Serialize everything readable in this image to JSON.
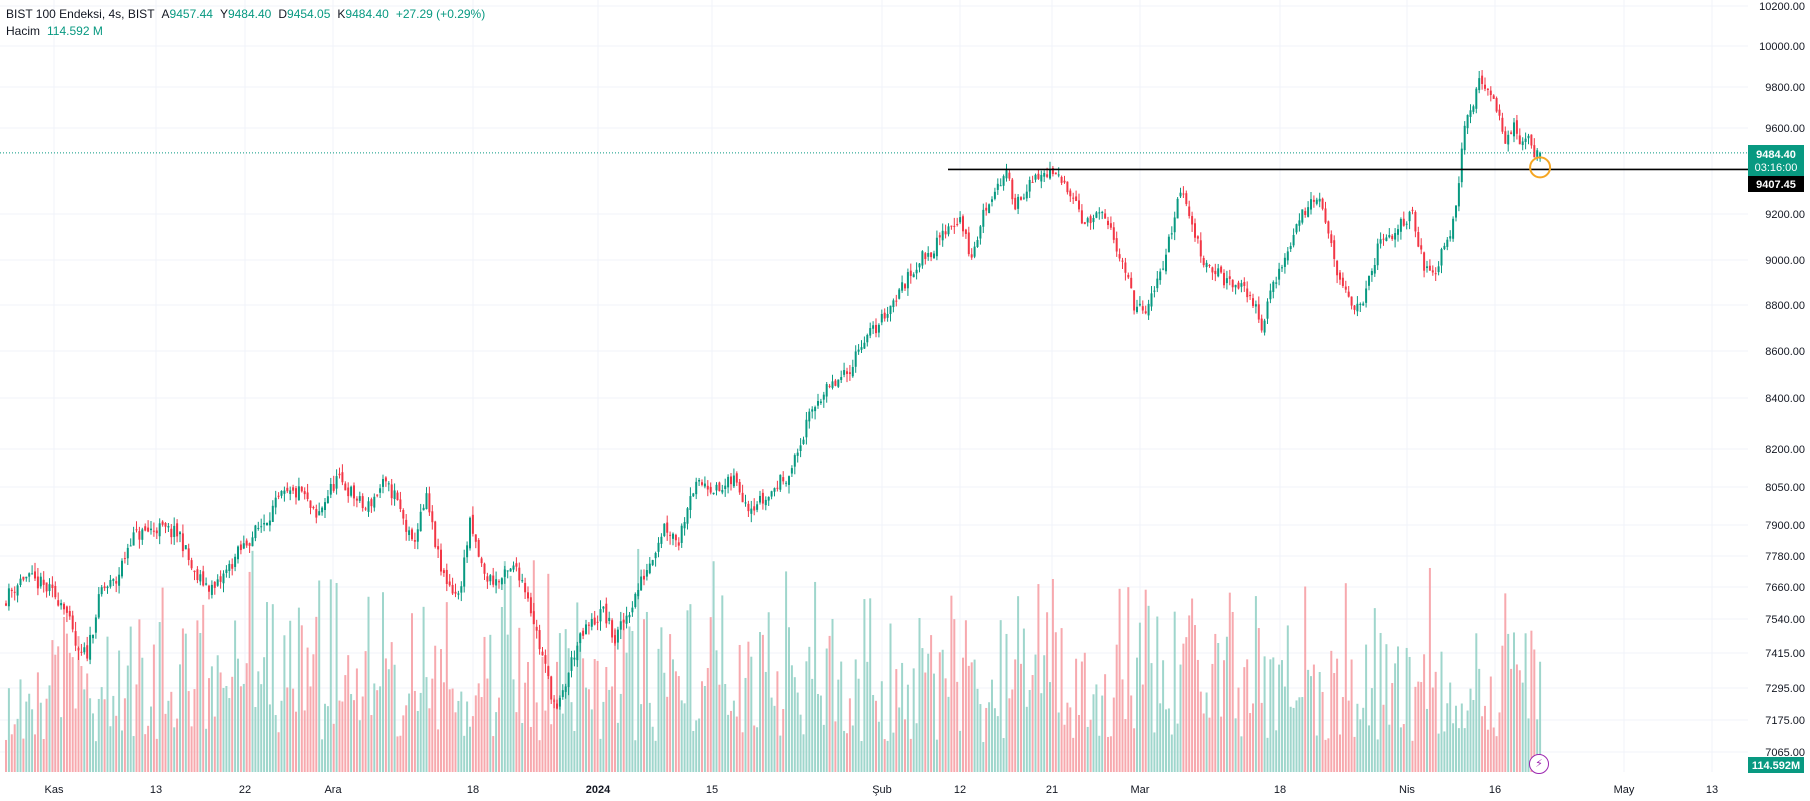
{
  "legend": {
    "symbol": "BIST 100 Endeksi, 4s, BIST",
    "open_label": "A",
    "open": "9457.44",
    "high_label": "Y",
    "high": "9484.40",
    "low_label": "D",
    "low": "9454.05",
    "close_label": "K",
    "close": "9484.40",
    "change": "+27.29 (+0.29%)",
    "volume_label": "Hacim",
    "volume_value": "114.592 M"
  },
  "price_tags": {
    "last": "9484.40",
    "countdown": "03:16:00",
    "line": "9407.45",
    "volume": "114.592M"
  },
  "colors": {
    "up": "#089981",
    "down": "#f23645",
    "vol_up": "#9fd6cc",
    "vol_down": "#f7a9ae",
    "grid": "#f0f3fa",
    "last_line": "#089981",
    "support_line": "#000000",
    "marker": "#f5a623",
    "bolt": "#9c27b0"
  },
  "icons": {
    "alert": "lightning-icon"
  },
  "chart_data": {
    "type": "candlestick",
    "title": "BIST 100 Endeksi, 4s, BIST",
    "xlabel": "",
    "ylabel": "",
    "ylim": [
      7065,
      10200
    ],
    "yticks": [
      "10200.00",
      "10000.00",
      "9800.00",
      "9600.00",
      "9200.00",
      "9000.00",
      "8800.00",
      "8600.00",
      "8400.00",
      "8200.00",
      "8050.00",
      "7900.00",
      "7780.00",
      "7660.00",
      "7540.00",
      "7415.00",
      "7295.00",
      "7175.00",
      "7065.00"
    ],
    "xticks": [
      "Kas",
      "13",
      "22",
      "Ara",
      "18",
      "2024",
      "15",
      "Şub",
      "12",
      "21",
      "Mar",
      "18",
      "Nis",
      "16",
      "May",
      "13"
    ],
    "grid": true,
    "support_level": 9407.45,
    "last_price": 9484.4,
    "close_anchors": [
      [
        0,
        7620
      ],
      [
        6,
        7700
      ],
      [
        12,
        7670
      ],
      [
        20,
        7600
      ],
      [
        25,
        7400
      ],
      [
        28,
        7420
      ],
      [
        33,
        7650
      ],
      [
        38,
        7680
      ],
      [
        43,
        7850
      ],
      [
        52,
        7890
      ],
      [
        60,
        7860
      ],
      [
        65,
        7700
      ],
      [
        72,
        7650
      ],
      [
        80,
        7790
      ],
      [
        88,
        7900
      ],
      [
        95,
        8010
      ],
      [
        102,
        8030
      ],
      [
        107,
        7920
      ],
      [
        110,
        8000
      ],
      [
        114,
        8080
      ],
      [
        118,
        8040
      ],
      [
        124,
        7960
      ],
      [
        130,
        8060
      ],
      [
        134,
        8020
      ],
      [
        140,
        7820
      ],
      [
        145,
        8000
      ],
      [
        150,
        7720
      ],
      [
        156,
        7620
      ],
      [
        160,
        7900
      ],
      [
        165,
        7700
      ],
      [
        170,
        7680
      ],
      [
        176,
        7740
      ],
      [
        180,
        7630
      ],
      [
        184,
        7440
      ],
      [
        190,
        7200
      ],
      [
        196,
        7420
      ],
      [
        200,
        7500
      ],
      [
        206,
        7570
      ],
      [
        210,
        7460
      ],
      [
        216,
        7600
      ],
      [
        222,
        7760
      ],
      [
        227,
        7900
      ],
      [
        232,
        7840
      ],
      [
        236,
        8030
      ],
      [
        241,
        8070
      ],
      [
        246,
        8030
      ],
      [
        251,
        8080
      ],
      [
        256,
        7980
      ],
      [
        262,
        8000
      ],
      [
        266,
        8060
      ],
      [
        271,
        8120
      ],
      [
        276,
        8290
      ],
      [
        280,
        8400
      ],
      [
        285,
        8450
      ],
      [
        290,
        8500
      ],
      [
        295,
        8640
      ],
      [
        300,
        8700
      ],
      [
        305,
        8800
      ],
      [
        310,
        8900
      ],
      [
        315,
        9000
      ],
      [
        320,
        9050
      ],
      [
        325,
        9150
      ],
      [
        329,
        9180
      ],
      [
        333,
        9000
      ],
      [
        337,
        9200
      ],
      [
        341,
        9320
      ],
      [
        345,
        9380
      ],
      [
        348,
        9250
      ],
      [
        352,
        9320
      ],
      [
        357,
        9380
      ],
      [
        360,
        9390
      ],
      [
        364,
        9350
      ],
      [
        368,
        9300
      ],
      [
        372,
        9150
      ],
      [
        377,
        9200
      ],
      [
        381,
        9120
      ],
      [
        385,
        9000
      ],
      [
        389,
        8800
      ],
      [
        393,
        8760
      ],
      [
        397,
        8900
      ],
      [
        401,
        9080
      ],
      [
        405,
        9320
      ],
      [
        409,
        9150
      ],
      [
        413,
        9000
      ],
      [
        417,
        8950
      ],
      [
        421,
        8900
      ],
      [
        425,
        8880
      ],
      [
        429,
        8850
      ],
      [
        433,
        8700
      ],
      [
        437,
        8900
      ],
      [
        441,
        9000
      ],
      [
        445,
        9150
      ],
      [
        449,
        9250
      ],
      [
        453,
        9300
      ],
      [
        457,
        9050
      ],
      [
        461,
        8860
      ],
      [
        465,
        8780
      ],
      [
        469,
        8850
      ],
      [
        473,
        9050
      ],
      [
        477,
        9100
      ],
      [
        481,
        9150
      ],
      [
        485,
        9220
      ],
      [
        489,
        8950
      ],
      [
        493,
        8950
      ],
      [
        495,
        9050
      ],
      [
        498,
        9130
      ],
      [
        500,
        9250
      ],
      [
        503,
        9600
      ],
      [
        506,
        9720
      ],
      [
        508,
        9820
      ],
      [
        511,
        9780
      ],
      [
        514,
        9700
      ],
      [
        517,
        9550
      ],
      [
        520,
        9600
      ],
      [
        522,
        9530
      ],
      [
        524,
        9560
      ],
      [
        527,
        9490
      ],
      [
        529,
        9484.4
      ]
    ],
    "volume_range_m": [
      40,
      310
    ]
  }
}
